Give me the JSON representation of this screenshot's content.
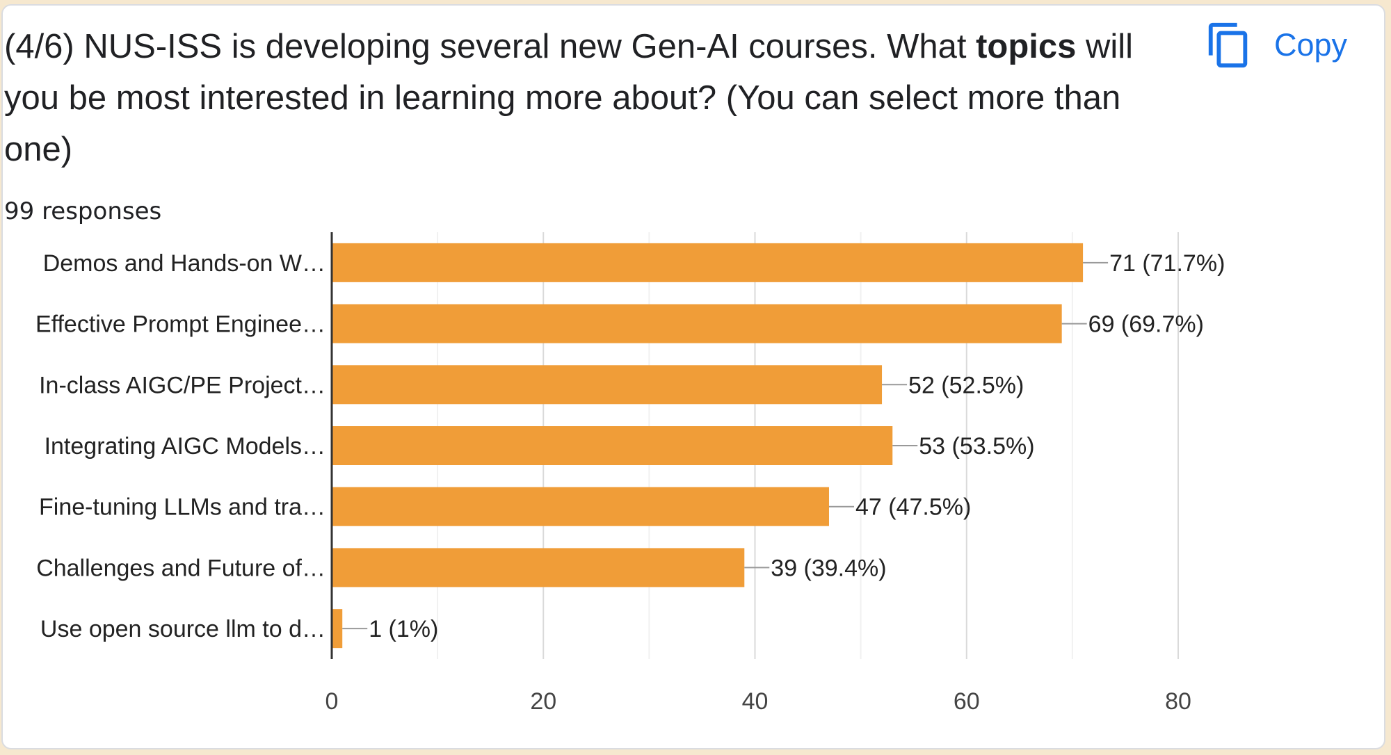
{
  "question": {
    "text_before": "(4/6) NUS-ISS is developing several new Gen-AI courses. What ",
    "text_bold": "topics",
    "text_after": " will you be most interested in learning more about? (You can select more than one)"
  },
  "copy_button": {
    "label": "Copy",
    "icon": "copy-icon",
    "color": "#1a73e8"
  },
  "responses_label": "99 responses",
  "chart_data": {
    "type": "bar",
    "orientation": "horizontal",
    "categories": [
      "Demos and Hands-on W…",
      "Effective Prompt Enginee…",
      "In-class AIGC/PE Project…",
      "Integrating AIGC Models…",
      "Fine-tuning LLMs and tra…",
      "Challenges and Future of…",
      "Use open source llm to d…"
    ],
    "values": [
      71,
      69,
      52,
      53,
      47,
      39,
      1
    ],
    "data_labels": [
      "71 (71.7%)",
      "69 (69.7%)",
      "52 (52.5%)",
      "53 (53.5%)",
      "47 (47.5%)",
      "39 (39.4%)",
      "1 (1%)"
    ],
    "xlim": [
      0,
      80
    ],
    "xticks": [
      0,
      20,
      40,
      60,
      80
    ],
    "minor_grid_step": 10,
    "grid": true,
    "bar_color": "#f09d38"
  }
}
